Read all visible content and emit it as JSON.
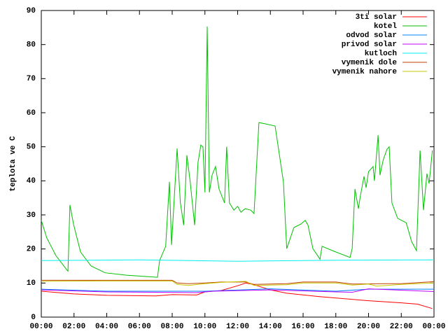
{
  "chart_data": {
    "type": "line",
    "ylabel": "teplota ve C",
    "xlim": [
      0,
      24
    ],
    "ylim": [
      0,
      90
    ],
    "xticks": [
      {
        "value": 0,
        "label": "00:00"
      },
      {
        "value": 2,
        "label": "02:00"
      },
      {
        "value": 4,
        "label": "04:00"
      },
      {
        "value": 6,
        "label": "06:00"
      },
      {
        "value": 8,
        "label": "08:00"
      },
      {
        "value": 10,
        "label": "10:00"
      },
      {
        "value": 12,
        "label": "12:00"
      },
      {
        "value": 14,
        "label": "14:00"
      },
      {
        "value": 16,
        "label": "16:00"
      },
      {
        "value": 18,
        "label": "18:00"
      },
      {
        "value": 20,
        "label": "20:00"
      },
      {
        "value": 22,
        "label": "22:00"
      },
      {
        "value": 24,
        "label": "00:00"
      }
    ],
    "yticks": [
      0,
      10,
      20,
      30,
      40,
      50,
      60,
      70,
      80,
      90
    ],
    "legend": "top-right",
    "series": [
      {
        "name": "3ti solar",
        "color": "#ff0000",
        "x": [
          0,
          2,
          4,
          7,
          8,
          9.5,
          10,
          11,
          12,
          12.5,
          13,
          14,
          15,
          17,
          20,
          22,
          23,
          23.9
        ],
        "values": [
          7.6,
          6.8,
          6.4,
          6.2,
          6.6,
          6.5,
          7.4,
          7.8,
          9.2,
          10,
          9.5,
          8,
          7,
          6,
          4.8,
          4.2,
          3.8,
          2.5
        ]
      },
      {
        "name": "kotel",
        "color": "#00c000",
        "x": [
          0,
          0.34,
          0.9,
          1.54,
          1.63,
          1.75,
          1.97,
          2.4,
          3.04,
          3.9,
          5.2,
          7.1,
          7.23,
          7.6,
          7.83,
          7.96,
          8.3,
          8.5,
          8.7,
          8.9,
          9.1,
          9.37,
          9.58,
          9.75,
          9.88,
          10.0,
          10.14,
          10.27,
          10.44,
          10.65,
          10.86,
          11.2,
          11.33,
          11.5,
          11.77,
          12.0,
          12.2,
          12.45,
          12.8,
          13.0,
          13.3,
          13.73,
          14.29,
          14.8,
          15.0,
          15.44,
          15.87,
          16.13,
          16.3,
          16.6,
          17.03,
          17.16,
          17.8,
          18.87,
          19.0,
          19.17,
          19.38,
          19.5,
          19.72,
          19.85,
          20.0,
          20.28,
          20.36,
          20.58,
          20.7,
          20.9,
          21.13,
          21.26,
          21.43,
          21.78,
          22.3,
          22.63,
          22.93,
          23.15,
          23.36,
          23.57,
          23.7,
          23.9
        ],
        "values": [
          28.4,
          23.2,
          18,
          14,
          13.5,
          32.9,
          27.3,
          19.1,
          15,
          13,
          12.3,
          11.7,
          16.6,
          20.8,
          39.7,
          21.2,
          49.5,
          33.5,
          27,
          47.5,
          39.7,
          27,
          45.4,
          50.5,
          50,
          36.6,
          85.3,
          36.6,
          41.7,
          44.2,
          37.6,
          33.5,
          50,
          33.5,
          31.4,
          32.5,
          30.8,
          31.8,
          31.4,
          30.4,
          57.1,
          56.7,
          56.1,
          39.7,
          20.1,
          26.3,
          27.3,
          28.4,
          27,
          20.1,
          17,
          20.8,
          19.5,
          17.5,
          20.1,
          37.6,
          31.8,
          35.5,
          41.3,
          38,
          42.7,
          44.2,
          40,
          53.4,
          41.7,
          46.2,
          49.3,
          50,
          33.5,
          29,
          27.7,
          22.2,
          19.5,
          48.9,
          31.4,
          42.1,
          39.2,
          48.9
        ]
      },
      {
        "name": "odvod solar",
        "color": "#0080ff",
        "x": [
          0,
          4,
          10,
          14,
          18,
          20,
          24
        ],
        "values": [
          8.2,
          7.6,
          7.6,
          8.3,
          7.6,
          8.2,
          8.2
        ]
      },
      {
        "name": "privod solar",
        "color": "#c000ff",
        "x": [
          0,
          4,
          9.5,
          10.5,
          14,
          18,
          19,
          20,
          24
        ],
        "values": [
          8,
          7.4,
          7.2,
          7.6,
          8,
          7.4,
          7.3,
          8.3,
          7.5
        ]
      },
      {
        "name": "kutloch",
        "color": "#00eeee",
        "x": [
          0,
          6,
          12,
          18,
          24
        ],
        "values": [
          16.6,
          16.8,
          16.4,
          16.7,
          16.8
        ]
      },
      {
        "name": "vymenik dole",
        "color": "#c04000",
        "x": [
          0,
          4,
          8,
          8.3,
          9,
          10,
          11,
          12.5,
          13,
          15,
          16,
          18,
          19,
          21,
          22,
          24
        ],
        "values": [
          10.8,
          10.8,
          10.8,
          10,
          9.8,
          10,
          10.3,
          10.3,
          9.6,
          9.8,
          10.3,
          10.3,
          9.7,
          9.8,
          9.8,
          10.4
        ]
      },
      {
        "name": "vymenik nahore",
        "color": "#c8c800",
        "x": [
          0,
          4,
          8,
          8.3,
          9,
          10,
          11,
          12.5,
          13,
          15,
          16,
          18,
          19,
          20,
          20.5,
          22,
          24
        ],
        "values": [
          10.5,
          10.6,
          10.6,
          9.6,
          9.3,
          9.8,
          10.2,
          10.5,
          9.3,
          9.5,
          10,
          10,
          9.4,
          9.7,
          9.1,
          9.6,
          10
        ]
      }
    ]
  }
}
